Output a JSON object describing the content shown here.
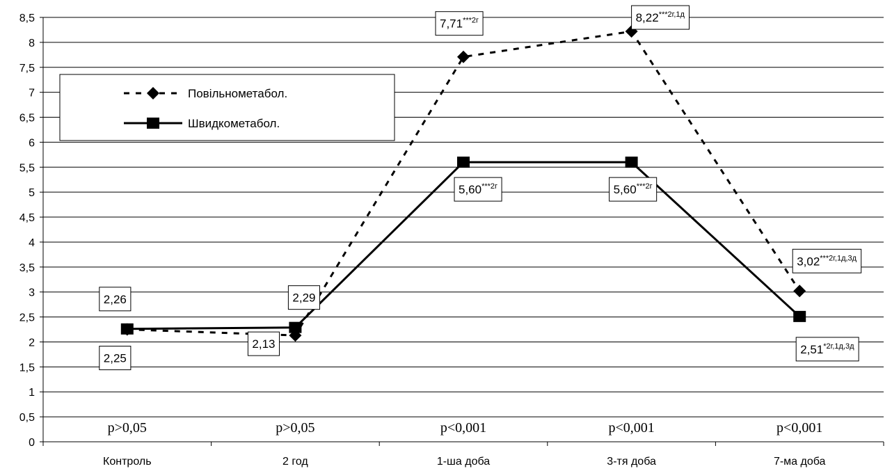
{
  "chart_data": {
    "type": "line",
    "categories": [
      "Контроль",
      "2 год",
      "1-ша доба",
      "3-тя доба",
      "7-ма доба"
    ],
    "ylim": [
      0,
      8.5
    ],
    "yticks": [
      "0",
      "0,5",
      "1",
      "1,5",
      "2",
      "2,5",
      "3",
      "3,5",
      "4",
      "4,5",
      "5",
      "5,5",
      "6",
      "6,5",
      "7",
      "7,5",
      "8",
      "8,5"
    ],
    "grid": true,
    "legend_position": "top-left",
    "series": [
      {
        "name": "Повільнометабол.",
        "style": "dashed",
        "marker": "diamond",
        "values": [
          2.25,
          2.13,
          7.71,
          8.22,
          3.02
        ],
        "labels": [
          {
            "main": "2,25",
            "sup": ""
          },
          {
            "main": "2,13",
            "sup": ""
          },
          {
            "main": "7,71",
            "sup": "***2г"
          },
          {
            "main": "8,22",
            "sup": "***2г,1д"
          },
          {
            "main": "3,02",
            "sup": "***2г,1д,3д"
          }
        ]
      },
      {
        "name": "Швидкометабол.",
        "style": "solid",
        "marker": "square",
        "values": [
          2.26,
          2.29,
          5.6,
          5.6,
          2.51
        ],
        "labels": [
          {
            "main": "2,26",
            "sup": ""
          },
          {
            "main": "2,29",
            "sup": ""
          },
          {
            "main": "5,60",
            "sup": "***2г"
          },
          {
            "main": "5,60",
            "sup": "***2г"
          },
          {
            "main": "2,51",
            "sup": "*2г,1д,3д"
          }
        ]
      }
    ],
    "annotations": [
      "p>0,05",
      "p>0,05",
      "p<0,001",
      "p<0,001",
      "p<0,001"
    ]
  },
  "colors": {
    "line": "#000000",
    "grid": "#000000",
    "background": "#ffffff"
  }
}
